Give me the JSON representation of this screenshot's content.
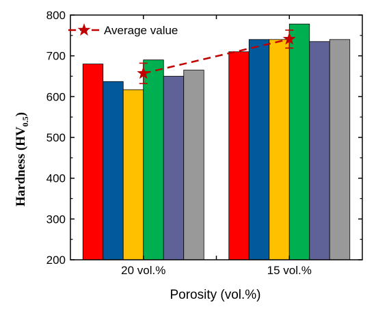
{
  "chart_data": {
    "type": "bar",
    "categories": [
      "20 vol.%",
      "15 vol.%"
    ],
    "series": [
      {
        "color": "#ff0000",
        "values": [
          680,
          710
        ]
      },
      {
        "color": "#005a9c",
        "values": [
          637,
          740
        ]
      },
      {
        "color": "#ffc000",
        "values": [
          617,
          740
        ]
      },
      {
        "color": "#00b050",
        "values": [
          690,
          778
        ]
      },
      {
        "color": "#5e6297",
        "values": [
          650,
          735
        ]
      },
      {
        "color": "#999999",
        "values": [
          665,
          740
        ]
      }
    ],
    "average": {
      "name": "Average value",
      "color": "#c00000",
      "values": [
        657,
        741
      ],
      "errors": [
        25,
        22
      ]
    },
    "title": "",
    "xlabel": "Porosity (vol.%)",
    "ylabel": {
      "main": "Hardness (HV",
      "sub": "0.5",
      "close": ")"
    },
    "ylim": [
      200,
      800
    ],
    "yticks": [
      200,
      300,
      400,
      500,
      600,
      700,
      800
    ],
    "legend_position": "top-left",
    "grid": false
  }
}
